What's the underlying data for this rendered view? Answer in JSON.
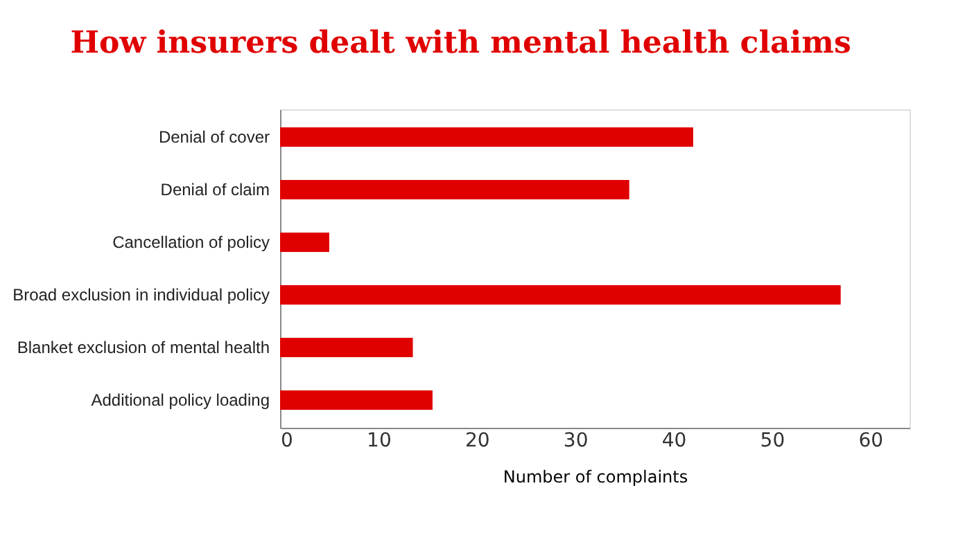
{
  "chart_data": {
    "type": "bar",
    "orientation": "horizontal",
    "title": "How insurers dealt with mental health claims",
    "xlabel": "Number of complaints",
    "categories": [
      "Denial of cover",
      "Denial of claim",
      "Cancellation of policy",
      "Broad exclusion in individual policy",
      "Blanket exclusion of mental health",
      "Additional policy loading"
    ],
    "values": [
      42,
      35.5,
      5,
      57,
      13.5,
      15.5
    ],
    "color": "#e00000",
    "xlim": [
      0,
      64
    ],
    "xticks": [
      0,
      10,
      20,
      30,
      40,
      50,
      60
    ],
    "grid": false
  }
}
